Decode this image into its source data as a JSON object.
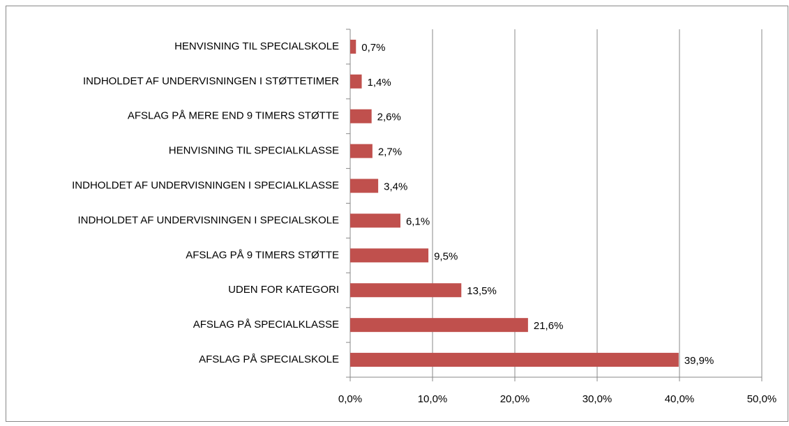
{
  "chart_data": {
    "type": "barh",
    "categories": [
      "HENVISNING TIL SPECIALSKOLE",
      "INDHOLDET AF UNDERVISNINGEN I STØTTETIMER",
      "AFSLAG PÅ MERE END 9 TIMERS STØTTE",
      "HENVISNING TIL SPECIALKLASSE",
      "INDHOLDET AF UNDERVISNINGEN I SPECIALKLASSE",
      "INDHOLDET AF UNDERVISNINGEN I SPECIALSKOLE",
      "AFSLAG PÅ 9 TIMERS STØTTE",
      "UDEN FOR KATEGORI",
      "AFSLAG PÅ SPECIALKLASSE",
      "AFSLAG PÅ SPECIALSKOLE"
    ],
    "values": [
      0.7,
      1.4,
      2.6,
      2.7,
      3.4,
      6.1,
      9.5,
      13.5,
      21.6,
      39.9
    ],
    "value_labels": [
      "0,7%",
      "1,4%",
      "2,6%",
      "2,7%",
      "3,4%",
      "6,1%",
      "9,5%",
      "13,5%",
      "21,6%",
      "39,9%"
    ],
    "color": "#c0504d",
    "xlim": [
      0,
      50
    ],
    "xticks": [
      {
        "value": 0,
        "label": "0,0%"
      },
      {
        "value": 10,
        "label": "10,0%"
      },
      {
        "value": 20,
        "label": "20,0%"
      },
      {
        "value": 30,
        "label": "30,0%"
      },
      {
        "value": 40,
        "label": "40,0%"
      },
      {
        "value": 50,
        "label": "50,0%"
      }
    ],
    "grid": true
  }
}
